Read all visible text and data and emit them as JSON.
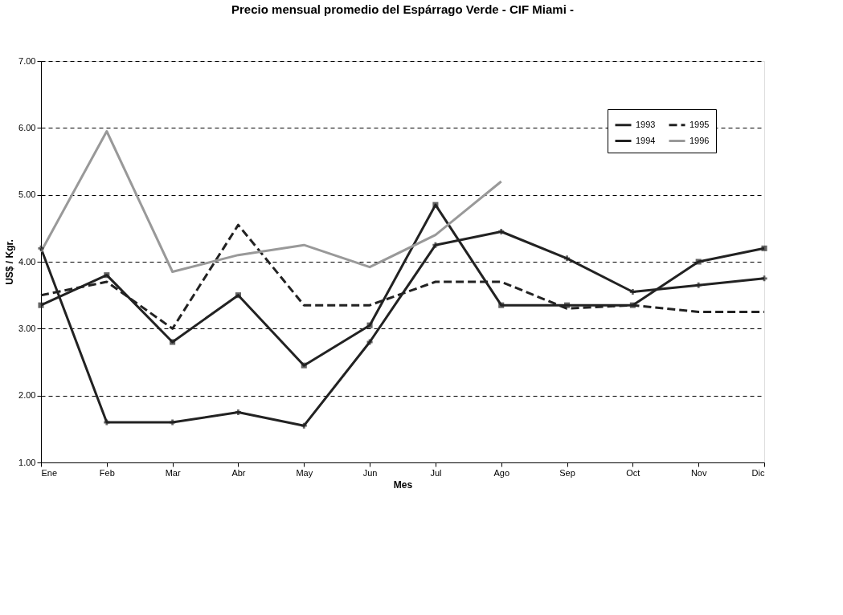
{
  "chart_data": {
    "type": "line",
    "title": "Precio mensual promedio del Espárrago Verde - CIF Miami -",
    "xlabel": "Mes",
    "ylabel": "US$ / Kgr.",
    "categories": [
      "Ene",
      "Feb",
      "Mar",
      "Abr",
      "May",
      "Jun",
      "Jul",
      "Ago",
      "Sep",
      "Oct",
      "Nov",
      "Dic"
    ],
    "series": [
      {
        "name": "1993",
        "color": "#222222",
        "marker": "cross",
        "line_style": "solid",
        "values": [
          4.2,
          1.6,
          1.6,
          1.75,
          1.55,
          2.8,
          4.25,
          4.45,
          4.05,
          3.55,
          3.65,
          3.75
        ]
      },
      {
        "name": "1994",
        "color": "#222222",
        "marker": "square",
        "line_style": "solid",
        "values": [
          3.35,
          3.8,
          2.8,
          3.5,
          2.45,
          3.05,
          4.85,
          3.35,
          3.35,
          3.35,
          4.0,
          4.2
        ]
      },
      {
        "name": "1995",
        "color": "#222222",
        "marker": "none",
        "line_style": "dashed",
        "values": [
          3.5,
          3.7,
          3.0,
          4.55,
          3.35,
          3.35,
          3.7,
          3.7,
          3.3,
          3.35,
          3.25,
          3.25
        ]
      },
      {
        "name": "1996",
        "color": "#999999",
        "marker": "none",
        "line_style": "solid",
        "values": [
          4.15,
          5.95,
          3.85,
          4.1,
          4.25,
          3.92,
          4.4,
          5.2,
          null,
          null,
          null,
          null
        ]
      }
    ],
    "ylim": [
      1,
      7
    ],
    "yticks": [
      {
        "value": 1,
        "label": "1.00"
      },
      {
        "value": 2,
        "label": "2.00"
      },
      {
        "value": 3,
        "label": "3.00"
      },
      {
        "value": 4,
        "label": "4.00"
      },
      {
        "value": 5,
        "label": "5.00"
      },
      {
        "value": 6,
        "label": "6.00"
      },
      {
        "value": 7,
        "label": "7.00"
      }
    ],
    "grid": "y",
    "legend": "top right"
  }
}
